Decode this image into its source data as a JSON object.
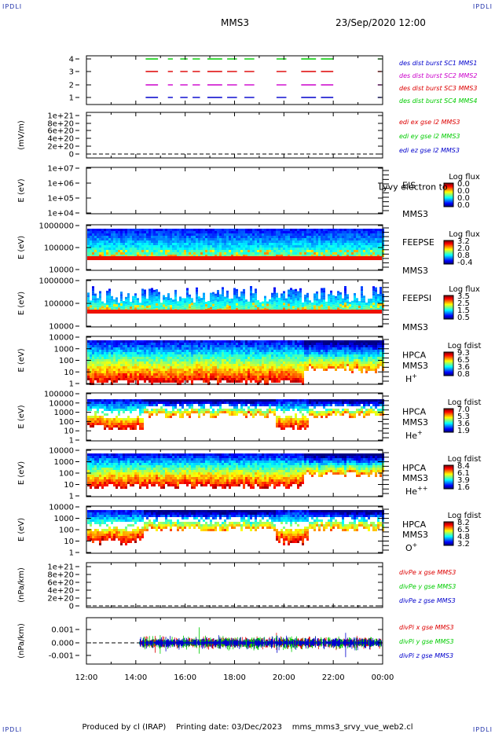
{
  "header": {
    "corner_label": "IPDLI",
    "title": "MMS3",
    "date": "23/Sep/2020 12:00"
  },
  "footer": {
    "producer": "Produced by cl (IRAP)",
    "printing": "Printing date: 03/Dec/2023",
    "file": "mms_mms3_srvy_vue_web2.cl"
  },
  "colors": {
    "blue": "#0000cc",
    "green": "#00cc00",
    "red": "#dd0000",
    "magenta": "#cc00cc"
  },
  "chart_data": [
    {
      "type": "line",
      "id": "burst",
      "ylabel": "",
      "yticks": [
        "1",
        "2",
        "3",
        "4"
      ],
      "series": [
        {
          "name": "des dist burst SC1 MMS1",
          "color": "#0000cc",
          "level": 1
        },
        {
          "name": "des dist burst SC2 MMS2",
          "color": "#cc00cc",
          "level": 2
        },
        {
          "name": "des dist burst SC3 MMS3",
          "color": "#dd0000",
          "level": 3
        },
        {
          "name": "des dist burst SC4 MMS4",
          "color": "#00cc00",
          "level": 4
        }
      ],
      "burst_intervals_hours": [
        [
          14.4,
          14.9
        ],
        [
          15.3,
          15.5
        ],
        [
          15.8,
          16.1
        ],
        [
          16.3,
          16.6
        ],
        [
          16.9,
          17.5
        ],
        [
          17.7,
          18.1
        ],
        [
          18.4,
          18.8
        ],
        [
          19.7,
          20.1
        ],
        [
          20.7,
          21.3
        ],
        [
          21.5,
          22.0
        ],
        [
          23.8,
          23.95
        ]
      ]
    },
    {
      "type": "line",
      "id": "edi",
      "ylabel": "(mV/m)",
      "yticks": [
        "0",
        "2e+20",
        "4e+20",
        "6e+20",
        "8e+20",
        "1e+21"
      ],
      "series": [
        {
          "name": "edi ex gse l2 MMS3",
          "color": "#dd0000"
        },
        {
          "name": "edi ey gse l2 MMS3",
          "color": "#00cc00"
        },
        {
          "name": "edi ez gse l2 MMS3",
          "color": "#0000cc"
        }
      ]
    },
    {
      "type": "heatmap",
      "id": "eis",
      "ylabel": "E (eV)",
      "yticks": [
        "1e+04",
        "1e+05",
        "1e+06",
        "1e+07"
      ],
      "instrument": "EIS",
      "spacecraft": "MMS3",
      "overlay_text": "Lyvy electron to",
      "colorbar_title": "Log flux",
      "colorbar_ticks": [
        "0.0",
        "0.0",
        "0.0",
        "0.0"
      ]
    },
    {
      "type": "heatmap",
      "id": "feepse",
      "ylabel": "E (eV)",
      "yticks": [
        "10000",
        "100000",
        "1000000"
      ],
      "instrument": "FEEPSE",
      "spacecraft": "MMS3",
      "colorbar_title": "Log flux",
      "colorbar_ticks": [
        "3.2",
        "2.0",
        "0.8",
        "-0.4"
      ]
    },
    {
      "type": "heatmap",
      "id": "feepsi",
      "ylabel": "E (eV)",
      "yticks": [
        "10000",
        "100000",
        "1000000"
      ],
      "instrument": "FEEPSI",
      "spacecraft": "MMS3",
      "colorbar_title": "Log flux",
      "colorbar_ticks": [
        "3.5",
        "2.5",
        "1.5",
        "0.5"
      ]
    },
    {
      "type": "heatmap",
      "id": "hpca_h",
      "ylabel": "E (eV)",
      "yticks": [
        "1",
        "10",
        "100",
        "1000",
        "10000"
      ],
      "instrument": "HPCA",
      "spacecraft": "MMS3",
      "species": "H",
      "species_sup": "+",
      "colorbar_title": "Log fdist",
      "colorbar_ticks": [
        "9.3",
        "6.5",
        "3.6",
        "0.8"
      ]
    },
    {
      "type": "heatmap",
      "id": "hpca_he",
      "ylabel": "E (eV)",
      "yticks": [
        "1",
        "10",
        "100",
        "1000",
        "10000",
        "100000"
      ],
      "instrument": "HPCA",
      "spacecraft": "MMS3",
      "species": "He",
      "species_sup": "+",
      "colorbar_title": "Log fdist",
      "colorbar_ticks": [
        "7.0",
        "5.3",
        "3.6",
        "1.9"
      ]
    },
    {
      "type": "heatmap",
      "id": "hpca_hepp",
      "ylabel": "E (eV)",
      "yticks": [
        "1",
        "10",
        "100",
        "1000",
        "10000"
      ],
      "instrument": "HPCA",
      "spacecraft": "MMS3",
      "species": "He",
      "species_sup": "++",
      "colorbar_title": "Log fdist",
      "colorbar_ticks": [
        "8.4",
        "6.1",
        "3.9",
        "1.6"
      ]
    },
    {
      "type": "heatmap",
      "id": "hpca_o",
      "ylabel": "E (eV)",
      "yticks": [
        "1",
        "10",
        "100",
        "1000",
        "10000"
      ],
      "instrument": "HPCA",
      "spacecraft": "MMS3",
      "species": "O",
      "species_sup": "+",
      "colorbar_title": "Log fdist",
      "colorbar_ticks": [
        "8.2",
        "6.5",
        "4.8",
        "3.2"
      ]
    },
    {
      "type": "line",
      "id": "divpe",
      "ylabel": "(nPa/km)",
      "yticks": [
        "0",
        "2e+20",
        "4e+20",
        "6e+20",
        "8e+20",
        "1e+21"
      ],
      "series": [
        {
          "name": "divPe x gse MMS3",
          "color": "#dd0000"
        },
        {
          "name": "divPe y gse MMS3",
          "color": "#00cc00"
        },
        {
          "name": "divPe z gse MMS3",
          "color": "#0000cc"
        }
      ]
    },
    {
      "type": "line",
      "id": "divpi",
      "ylabel": "(nPa/km)",
      "yticks": [
        "-0.001",
        "0.000",
        "0.001"
      ],
      "ylim": [
        -0.0015,
        0.0015
      ],
      "data_start_hour": 14.15,
      "series": [
        {
          "name": "divPi x gse MMS3",
          "color": "#dd0000"
        },
        {
          "name": "divPi y gse MMS3",
          "color": "#00cc00"
        },
        {
          "name": "divPi z gse MMS3",
          "color": "#0000cc"
        }
      ]
    }
  ],
  "xaxis": {
    "tick_labels": [
      "12:00",
      "14:00",
      "16:00",
      "18:00",
      "20:00",
      "22:00",
      "00:00"
    ],
    "range_hours": [
      12,
      24
    ]
  }
}
